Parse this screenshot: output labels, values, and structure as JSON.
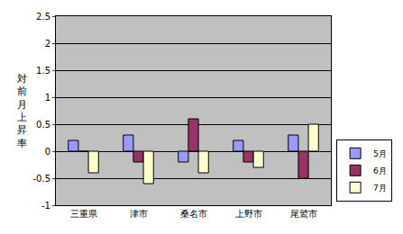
{
  "chart_data": {
    "type": "bar",
    "y_label": "対前月上昇率",
    "categories": [
      "三重県",
      "津市",
      "桑名市",
      "上野市",
      "尾鷲市"
    ],
    "series": [
      {
        "name": "5月",
        "color": "#9999ff",
        "values": [
          0.2,
          0.3,
          -0.2,
          0.2,
          0.3
        ]
      },
      {
        "name": "6月",
        "color": "#993366",
        "values": [
          0,
          -0.2,
          0.6,
          -0.2,
          -0.5
        ]
      },
      {
        "name": "7月",
        "color": "#ffffcc",
        "values": [
          -0.4,
          -0.6,
          -0.4,
          -0.3,
          0.5
        ]
      }
    ],
    "ylim": [
      -1,
      2.5
    ],
    "yticks": [
      -1,
      -0.5,
      0,
      0.5,
      1,
      1.5,
      2,
      2.5
    ],
    "grid": true,
    "legend": "right"
  }
}
